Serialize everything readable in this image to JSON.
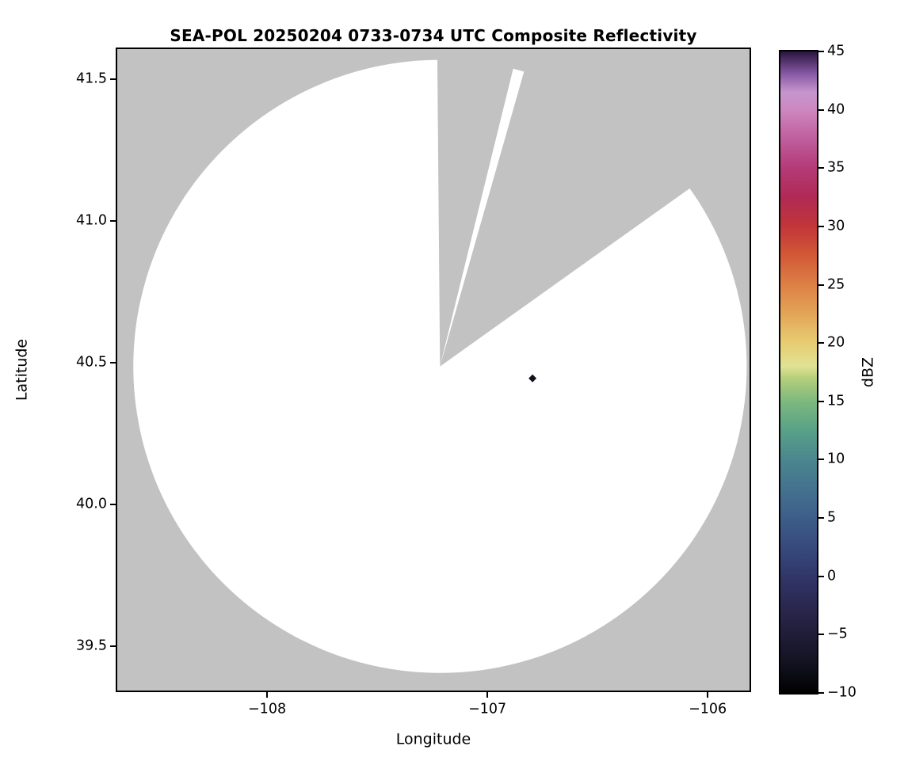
{
  "chart_data": {
    "type": "heatmap",
    "title": "SEA-POL 20250204 0733-0734 UTC Composite Reflectivity",
    "xlabel": "Longitude",
    "ylabel": "Latitude",
    "xlim": [
      -108.68,
      -105.81
    ],
    "ylim": [
      39.345,
      41.605
    ],
    "xticks": [
      -108,
      -107,
      -106
    ],
    "xtick_labels": [
      "−108",
      "−107",
      "−106"
    ],
    "yticks": [
      39.5,
      40.0,
      40.5,
      41.0,
      41.5
    ],
    "ytick_labels": [
      "39.5",
      "40.0",
      "40.5",
      "41.0",
      "41.5"
    ],
    "grid": false,
    "legend": "none",
    "plot_bg_color": "#c2c2c2",
    "coverage_color": "#ffffff",
    "radar": {
      "center_lon": -107.215,
      "center_lat": 40.487,
      "range_radius_deg_lat": 1.08,
      "blocked_sectors_azimuth_deg": [
        [
          -0.5,
          13.8
        ],
        [
          15.9,
          54.5
        ]
      ]
    },
    "echoes": [
      {
        "lon": -106.795,
        "lat": 40.445,
        "marker": "diamond",
        "color": "#161020"
      }
    ],
    "colorbar": {
      "label": "dBZ",
      "vmin": -10,
      "vmax": 45,
      "ticks": [
        45,
        40,
        35,
        30,
        25,
        20,
        15,
        10,
        5,
        0,
        -5,
        -10
      ],
      "tick_labels": [
        "45",
        "40",
        "35",
        "30",
        "25",
        "20",
        "15",
        "10",
        "5",
        "0",
        "−5",
        "−10"
      ],
      "stops": [
        {
          "v": -10,
          "c": "#010102"
        },
        {
          "v": -7.5,
          "c": "#121220"
        },
        {
          "v": -5,
          "c": "#201d38"
        },
        {
          "v": -2.5,
          "c": "#2a2851"
        },
        {
          "v": 0,
          "c": "#313668"
        },
        {
          "v": 2.5,
          "c": "#374a7c"
        },
        {
          "v": 5,
          "c": "#3d5e89"
        },
        {
          "v": 7.5,
          "c": "#44728f"
        },
        {
          "v": 10,
          "c": "#4b868e"
        },
        {
          "v": 12.5,
          "c": "#58a188"
        },
        {
          "v": 15,
          "c": "#7db97e"
        },
        {
          "v": 17,
          "c": "#b5cf7b"
        },
        {
          "v": 18,
          "c": "#e0e294"
        },
        {
          "v": 20,
          "c": "#e7cd72"
        },
        {
          "v": 22.5,
          "c": "#e3a558"
        },
        {
          "v": 25,
          "c": "#dd8045"
        },
        {
          "v": 27.5,
          "c": "#d25936"
        },
        {
          "v": 30,
          "c": "#c23539"
        },
        {
          "v": 32.5,
          "c": "#b02a55"
        },
        {
          "v": 35,
          "c": "#b43a77"
        },
        {
          "v": 37.5,
          "c": "#c05e9d"
        },
        {
          "v": 40,
          "c": "#cd87c0"
        },
        {
          "v": 41.5,
          "c": "#c795cd"
        },
        {
          "v": 43,
          "c": "#8c5ca8"
        },
        {
          "v": 45,
          "c": "#2a1440"
        }
      ]
    }
  }
}
